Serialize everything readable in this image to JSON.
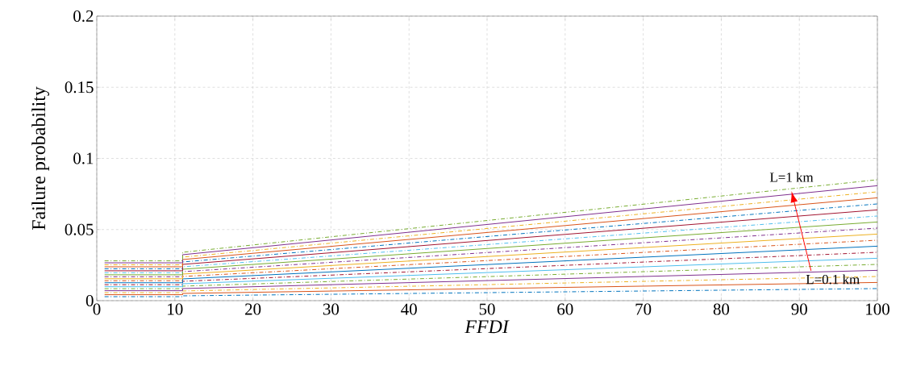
{
  "chart_data": {
    "type": "line",
    "xlabel": "*FFDI*",
    "ylabel": "Failure probability",
    "x": [
      1,
      11,
      11,
      100
    ],
    "xlim": [
      0,
      100
    ],
    "xticks": [
      0,
      10,
      20,
      30,
      40,
      50,
      60,
      70,
      80,
      90,
      100
    ],
    "ylim": [
      0,
      0.2
    ],
    "yticks": [
      0,
      0.05,
      0.1,
      0.15,
      0.2
    ],
    "grid": true,
    "marker": "none",
    "annotations": [
      {
        "text": "L=1 km",
        "x": 89,
        "y": 0.077
      },
      {
        "text": "L=0.1 km",
        "x": 91.5,
        "y": 0.021
      }
    ],
    "series": [
      {
        "color": "#0072bd",
        "line_style": "dashdot",
        "values": [
          0.0028,
          0.0028,
          0.0034,
          0.0085
        ]
      },
      {
        "color": "#d95319",
        "line_style": "solid",
        "values": [
          0.0042,
          0.0042,
          0.0051,
          0.0128
        ]
      },
      {
        "color": "#edb120",
        "line_style": "dashdot",
        "values": [
          0.0056,
          0.0056,
          0.0068,
          0.017
        ]
      },
      {
        "color": "#7e2f8e",
        "line_style": "solid",
        "values": [
          0.007,
          0.007,
          0.0085,
          0.0213
        ]
      },
      {
        "color": "#77ac30",
        "line_style": "dashdot",
        "values": [
          0.0084,
          0.0084,
          0.0102,
          0.0255
        ]
      },
      {
        "color": "#4dbeee",
        "line_style": "solid",
        "values": [
          0.0098,
          0.0098,
          0.0119,
          0.0298
        ]
      },
      {
        "color": "#a2142f",
        "line_style": "dashdot",
        "values": [
          0.0112,
          0.0112,
          0.0136,
          0.034
        ]
      },
      {
        "color": "#0072bd",
        "line_style": "solid",
        "values": [
          0.0126,
          0.0126,
          0.0153,
          0.0383
        ]
      },
      {
        "color": "#d95319",
        "line_style": "dashdot",
        "values": [
          0.014,
          0.014,
          0.017,
          0.0425
        ]
      },
      {
        "color": "#edb120",
        "line_style": "solid",
        "values": [
          0.0154,
          0.0154,
          0.0187,
          0.0468
        ]
      },
      {
        "color": "#7e2f8e",
        "line_style": "dashdot",
        "values": [
          0.0168,
          0.0168,
          0.0204,
          0.051
        ]
      },
      {
        "color": "#77ac30",
        "line_style": "solid",
        "values": [
          0.0182,
          0.0182,
          0.0221,
          0.0553
        ]
      },
      {
        "color": "#4dbeee",
        "line_style": "dashdot",
        "values": [
          0.0196,
          0.0196,
          0.0238,
          0.0595
        ]
      },
      {
        "color": "#a2142f",
        "line_style": "solid",
        "values": [
          0.021,
          0.021,
          0.0255,
          0.0638
        ]
      },
      {
        "color": "#0072bd",
        "line_style": "dashdot",
        "values": [
          0.0224,
          0.0224,
          0.0272,
          0.068
        ]
      },
      {
        "color": "#d95319",
        "line_style": "solid",
        "values": [
          0.0238,
          0.0238,
          0.0289,
          0.0723
        ]
      },
      {
        "color": "#edb120",
        "line_style": "dashdot",
        "values": [
          0.0252,
          0.0252,
          0.0306,
          0.0765
        ]
      },
      {
        "color": "#7e2f8e",
        "line_style": "solid",
        "values": [
          0.0266,
          0.0266,
          0.0323,
          0.0808
        ]
      },
      {
        "color": "#77ac30",
        "line_style": "dashdot",
        "values": [
          0.028,
          0.028,
          0.034,
          0.085
        ]
      }
    ]
  }
}
